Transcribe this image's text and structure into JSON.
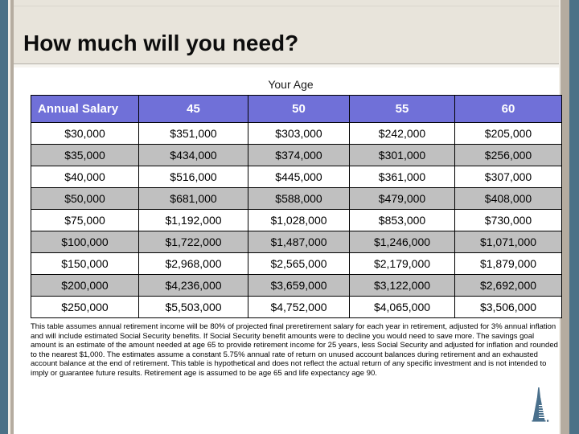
{
  "title": "How much will you need?",
  "table": {
    "group_header": "Your Age",
    "columns": [
      "Annual Salary",
      "45",
      "50",
      "55",
      "60"
    ],
    "rows": [
      [
        "$30,000",
        "$351,000",
        "$303,000",
        "$242,000",
        "$205,000"
      ],
      [
        "$35,000",
        "$434,000",
        "$374,000",
        "$301,000",
        "$256,000"
      ],
      [
        "$40,000",
        "$516,000",
        "$445,000",
        "$361,000",
        "$307,000"
      ],
      [
        "$50,000",
        "$681,000",
        "$588,000",
        "$479,000",
        "$408,000"
      ],
      [
        "$75,000",
        "$1,192,000",
        "$1,028,000",
        "$853,000",
        "$730,000"
      ],
      [
        "$100,000",
        "$1,722,000",
        "$1,487,000",
        "$1,246,000",
        "$1,071,000"
      ],
      [
        "$150,000",
        "$2,968,000",
        "$2,565,000",
        "$2,179,000",
        "$1,879,000"
      ],
      [
        "$200,000",
        "$4,236,000",
        "$3,659,000",
        "$3,122,000",
        "$2,692,000"
      ],
      [
        "$250,000",
        "$5,503,000",
        "$4,752,000",
        "$4,065,000",
        "$3,506,000"
      ]
    ]
  },
  "footnote": "This table assumes annual retirement income will be 80% of projected final preretirement salary for each year in retirement, adjusted for 3% annual inflation and will include estimated Social Security benefits. If Social Security benefit amounts were to decline you would need to save more. The savings goal amount is an estimate of the amount needed at age 65 to provide retirement income for 25 years, less Social Security and adjusted for inflation and rounded to the nearest $1,000. The estimates assume a constant 5.75% annual rate of return on unused account balances during retirement and an exhausted account balance at the end of retirement. This table is hypothetical and does not reflect the actual return of any specific investment and is not intended to imply or guarantee future results. Retirement age is assumed to be age 65 and life expectancy age 90.",
  "logo": {
    "name": "transamerica-pyramid"
  },
  "colors": {
    "header_bg": "#7070d8",
    "alt_row_bg": "#c0c0c0",
    "frame_slate": "#4b7187",
    "frame_tan": "#b5aca0",
    "title_band_bg": "#e8e4db",
    "logo": "#4a708c"
  }
}
